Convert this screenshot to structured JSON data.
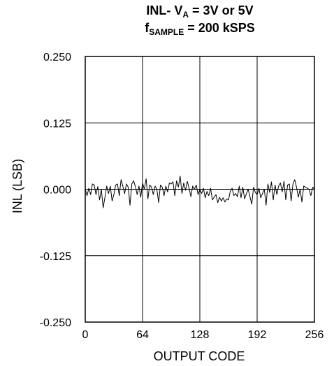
{
  "title": {
    "line1_pre": "INL- V",
    "line1_sub": "A",
    "line1_post": " = 3V or 5V",
    "line2_pre": "f",
    "line2_sub": "SAMPLE",
    "line2_post": " = 200 kSPS"
  },
  "chart_data": {
    "type": "line",
    "xlabel": "OUTPUT CODE",
    "ylabel": "INL (LSB)",
    "xlim": [
      0,
      256
    ],
    "ylim": [
      -0.25,
      0.25
    ],
    "xticks": [
      0,
      64,
      128,
      192,
      256
    ],
    "xtick_labels": [
      "0",
      "64",
      "128",
      "192",
      "256"
    ],
    "yticks": [
      0.25,
      0.125,
      0,
      -0.125,
      -0.25
    ],
    "ytick_labels": [
      "0.250",
      "0.125",
      "0.000",
      "-0.125",
      "-0.250"
    ],
    "grid": true,
    "series": [
      {
        "color": "#000000",
        "x": [
          0,
          2,
          4,
          6,
          8,
          10,
          12,
          14,
          16,
          18,
          20,
          22,
          24,
          26,
          28,
          30,
          32,
          34,
          36,
          38,
          40,
          42,
          44,
          46,
          48,
          50,
          52,
          54,
          56,
          58,
          60,
          62,
          64,
          66,
          68,
          70,
          72,
          74,
          76,
          78,
          80,
          82,
          84,
          86,
          88,
          90,
          92,
          94,
          96,
          98,
          100,
          102,
          104,
          106,
          108,
          110,
          112,
          114,
          116,
          118,
          120,
          122,
          124,
          126,
          128,
          130,
          132,
          134,
          136,
          138,
          140,
          142,
          144,
          146,
          148,
          150,
          152,
          154,
          156,
          158,
          160,
          162,
          164,
          166,
          168,
          170,
          172,
          174,
          176,
          178,
          180,
          182,
          184,
          186,
          188,
          190,
          192,
          194,
          196,
          198,
          200,
          202,
          204,
          206,
          208,
          210,
          212,
          214,
          216,
          218,
          220,
          222,
          224,
          226,
          228,
          230,
          232,
          234,
          236,
          238,
          240,
          242,
          244,
          246,
          248,
          250,
          252,
          254,
          256
        ],
        "values": [
          0.0,
          -0.012,
          0.002,
          -0.01,
          0.01,
          0.008,
          -0.01,
          0.005,
          -0.02,
          0.0,
          -0.035,
          -0.015,
          0.006,
          -0.008,
          0.006,
          -0.022,
          -0.01,
          0.008,
          0.01,
          -0.012,
          0.018,
          0.006,
          -0.008,
          0.01,
          0.004,
          -0.03,
          0.01,
          0.016,
          0.005,
          -0.01,
          0.006,
          -0.015,
          0.012,
          0.0,
          0.02,
          -0.018,
          0.008,
          0.004,
          -0.01,
          0.006,
          0.0,
          -0.025,
          0.008,
          0.004,
          -0.012,
          0.006,
          -0.005,
          0.012,
          0.01,
          0.014,
          -0.012,
          0.016,
          0.004,
          0.025,
          -0.008,
          0.012,
          -0.002,
          0.015,
          0.002,
          -0.014,
          0.006,
          0.0,
          0.008,
          -0.01,
          0.0,
          -0.008,
          0.002,
          -0.016,
          -0.004,
          -0.012,
          0.002,
          -0.02,
          -0.015,
          -0.01,
          -0.025,
          -0.015,
          -0.022,
          -0.016,
          -0.024,
          -0.018,
          -0.02,
          -0.004,
          0.002,
          -0.012,
          -0.008,
          -0.014,
          0.006,
          -0.016,
          0.004,
          -0.018,
          -0.008,
          0.0,
          -0.014,
          -0.028,
          0.004,
          -0.006,
          -0.01,
          0.002,
          -0.016,
          -0.008,
          0.0,
          -0.03,
          0.01,
          -0.006,
          0.014,
          -0.02,
          0.008,
          -0.01,
          0.006,
          0.012,
          -0.005,
          0.015,
          -0.02,
          0.008,
          0.01,
          -0.022,
          0.01,
          0.018,
          0.004,
          -0.015,
          0.0,
          -0.024,
          0.006,
          0.004,
          0.002,
          0.0,
          -0.012,
          0.004,
          0.0
        ]
      }
    ]
  }
}
